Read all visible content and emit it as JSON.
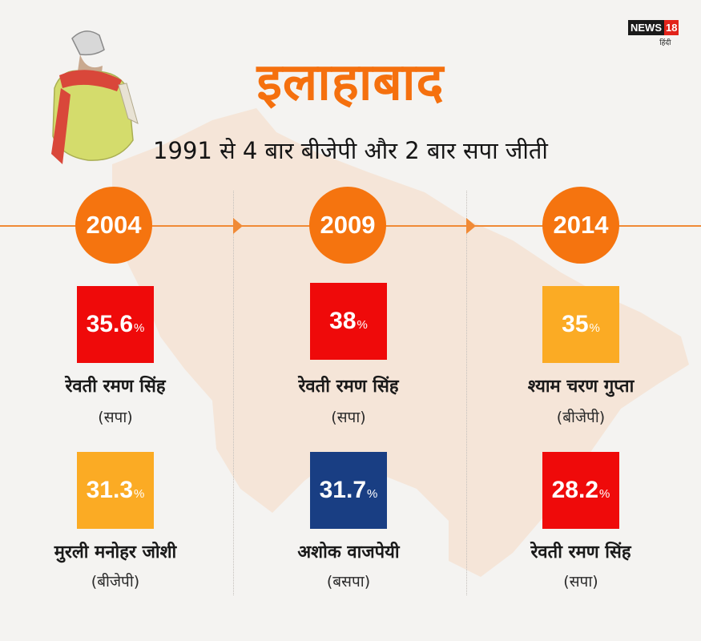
{
  "title": "इलाहाबाद",
  "subtitle": "1991 से 4 बार बीजेपी और 2 बार सपा जीती",
  "brand": {
    "news": "NEWS",
    "number": "18",
    "language": "हिंदी"
  },
  "colors": {
    "accent": "#f5740f",
    "sp": "#ef0a0a",
    "bjp": "#fbab24",
    "bsp": "#193e83"
  },
  "columns": [
    {
      "year": "2004",
      "winner": {
        "value": "35.6",
        "unit": "%",
        "name": "रेवती रमण सिंह",
        "party": "(सपा)"
      },
      "runner_up": {
        "value": "31.3",
        "unit": "%",
        "name": "मुरली मनोहर जोशी",
        "party": "(बीजेपी)"
      }
    },
    {
      "year": "2009",
      "winner": {
        "value": "38",
        "unit": "%",
        "name": "रेवती रमण सिंह",
        "party": "(सपा)"
      },
      "runner_up": {
        "value": "31.7",
        "unit": "%",
        "name": "अशोक वाजपेयी",
        "party": "(बसपा)"
      }
    },
    {
      "year": "2014",
      "winner": {
        "value": "35",
        "unit": "%",
        "name": "श्याम चरण गुप्ता",
        "party": "(बीजेपी)"
      },
      "runner_up": {
        "value": "28.2",
        "unit": "%",
        "name": "रेवती रमण सिंह",
        "party": "(सपा)"
      }
    }
  ]
}
